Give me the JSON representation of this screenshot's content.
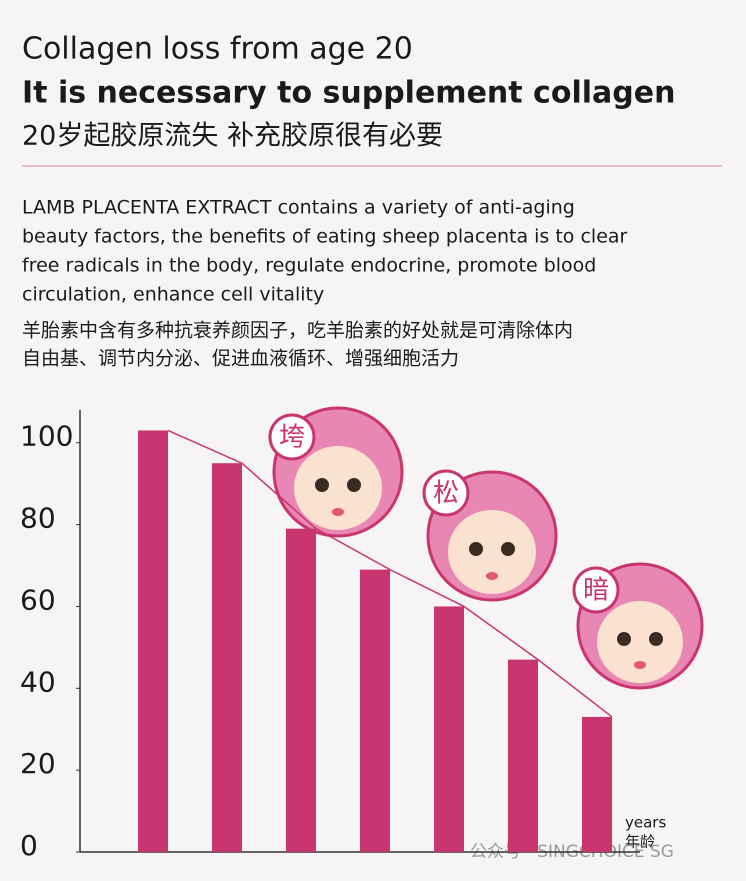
{
  "chart_data": {
    "type": "bar",
    "title": "Collagen loss from age 20",
    "subtitle": "It is necessary to supplement collagen",
    "subtitle_cn": "20岁起胶原流失 补充胶原很有必要",
    "description": [
      "LAMB PLACENTA EXTRACT contains a variety of anti-aging",
      "beauty factors, the benefits of eating sheep placenta is to clear",
      "free radicals in the body, regulate endocrine, promote blood",
      "circulation, enhance cell vitality"
    ],
    "description_cn": [
      "羊胎素中含有多种抗衰养颜因子，吃羊胎素的好处就是可清除体内",
      "自由基、调节内分泌、促进血液循环、增强细胞活力"
    ],
    "categories": [
      null,
      null,
      null,
      null,
      null,
      null,
      null
    ],
    "values": [
      103,
      95,
      79,
      69,
      60,
      47,
      33
    ],
    "color": "#c8356f",
    "ylim": [
      0,
      108
    ],
    "yticks": [
      0,
      20,
      40,
      60,
      80,
      100
    ],
    "xlabel": [
      "years",
      "年龄"
    ],
    "annotations": [
      "垮",
      "松",
      "暗"
    ],
    "watermark": "公众号 · SINGCHOICE SG"
  }
}
